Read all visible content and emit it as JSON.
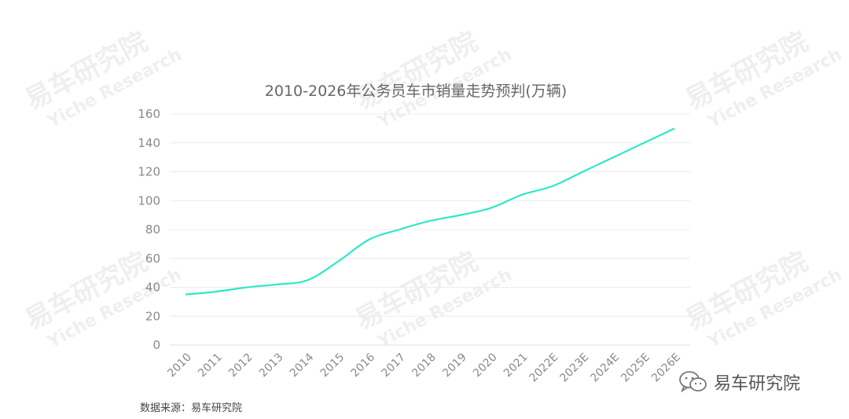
{
  "chart_data": {
    "type": "line",
    "title": "2010-2026年公务员车市销量走势预判(万辆)",
    "categories": [
      "2010",
      "2011",
      "2012",
      "2013",
      "2014",
      "2015",
      "2016",
      "2017",
      "2018",
      "2019",
      "2020",
      "2021",
      "2022E",
      "2023E",
      "2024E",
      "2025E",
      "2026E"
    ],
    "series": [
      {
        "values": [
          35,
          37,
          40,
          42,
          45,
          58,
          73,
          80,
          86,
          90,
          95,
          104,
          110,
          120,
          130,
          140,
          150
        ]
      }
    ],
    "ylim": [
      0,
      160
    ],
    "yticks": [
      0,
      20,
      40,
      60,
      80,
      100,
      120,
      140,
      160
    ],
    "grid": true,
    "line_color": "#2ee8c8"
  },
  "watermark": {
    "cn": "易车研究院",
    "en": "Yiche Research"
  },
  "source_label": "数据来源：易车研究院",
  "brand": {
    "name": "易车研究院",
    "icon": "wechat-icon"
  }
}
